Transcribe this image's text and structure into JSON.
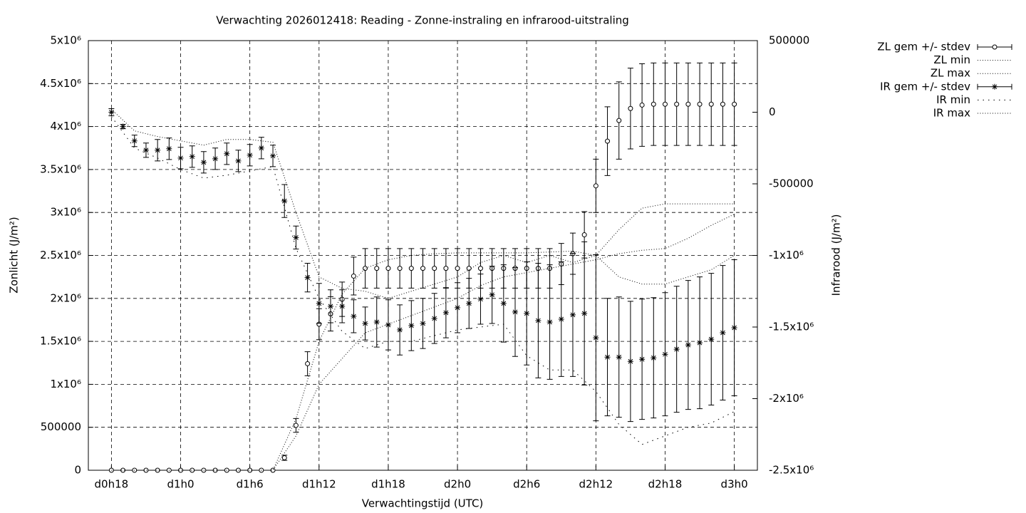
{
  "chart_data": {
    "type": "errorbar",
    "title": "Verwachting 2026012418: Reading - Zonne-instraling en infrarood-uitstraling",
    "xlabel": "Verwachtingstijd (UTC)",
    "ylabel": "Zonlicht (J/m²)",
    "y2label": "Infrarood (J/m²)",
    "grid": true,
    "legend": "outside-top-right",
    "xlim": [
      16,
      74
    ],
    "xticks": [
      {
        "value": 18,
        "label": "d0h18"
      },
      {
        "value": 24,
        "label": "d1h0"
      },
      {
        "value": 30,
        "label": "d1h6"
      },
      {
        "value": 36,
        "label": "d1h12"
      },
      {
        "value": 42,
        "label": "d1h18"
      },
      {
        "value": 48,
        "label": "d2h0"
      },
      {
        "value": 54,
        "label": "d2h6"
      },
      {
        "value": 60,
        "label": "d2h12"
      },
      {
        "value": 66,
        "label": "d2h18"
      },
      {
        "value": 72,
        "label": "d3h0"
      }
    ],
    "ylim": [
      0,
      5000000
    ],
    "yticks": [
      0,
      500000,
      {
        "value": 1000000,
        "label": "1x10⁶"
      },
      {
        "value": 1500000,
        "label": "1.5x10⁶"
      },
      {
        "value": 2000000,
        "label": "2x10⁶"
      },
      {
        "value": 2500000,
        "label": "2.5x10⁶"
      },
      {
        "value": 3000000,
        "label": "3x10⁶"
      },
      {
        "value": 3500000,
        "label": "3.5x10⁶"
      },
      {
        "value": 4000000,
        "label": "4x10⁶"
      },
      {
        "value": 4500000,
        "label": "4.5x10⁶"
      },
      {
        "value": 5000000,
        "label": "5x10⁶"
      }
    ],
    "y2lim": [
      -2500000,
      500000
    ],
    "y2ticks": [
      {
        "value": -2500000,
        "label": "-2.5x10⁶"
      },
      {
        "value": -2000000,
        "label": "-2x10⁶"
      },
      {
        "value": -1500000,
        "label": "-1.5x10⁶"
      },
      {
        "value": -1000000,
        "label": "-1x10⁶"
      },
      -500000,
      0,
      500000
    ],
    "x": [
      18,
      19,
      20,
      21,
      22,
      23,
      24,
      25,
      26,
      27,
      28,
      29,
      30,
      31,
      32,
      33,
      34,
      35,
      36,
      37,
      38,
      39,
      40,
      41,
      42,
      43,
      44,
      45,
      46,
      47,
      48,
      49,
      50,
      51,
      52,
      53,
      54,
      55,
      56,
      57,
      58,
      59,
      60,
      61,
      62,
      63,
      64,
      65,
      66,
      67,
      68,
      69,
      70,
      71,
      72
    ],
    "series": [
      {
        "name": "ZL gem +/- stdev",
        "color": "#000000",
        "style": "errorbar",
        "marker": "circle",
        "values": [
          0,
          0,
          0,
          0,
          0,
          0,
          0,
          0,
          0,
          0,
          0,
          0,
          0,
          0,
          0,
          145000,
          522000,
          1240000,
          1700000,
          1820000,
          1990000,
          2260000,
          2350000,
          2350000,
          2350000,
          2350000,
          2350000,
          2350000,
          2350000,
          2350000,
          2350000,
          2350000,
          2350000,
          2350000,
          2350000,
          2350000,
          2350000,
          2350000,
          2350000,
          2400000,
          2520000,
          2740000,
          3310000,
          3830000,
          4070000,
          4210000,
          4250000,
          4260000,
          4260000,
          4260000,
          4260000,
          4260000,
          4260000,
          4260000,
          4260000
        ],
        "errors": [
          0,
          0,
          0,
          0,
          0,
          0,
          0,
          0,
          0,
          0,
          0,
          0,
          0,
          0,
          0,
          30000,
          80000,
          140000,
          180000,
          200000,
          200000,
          220000,
          230000,
          230000,
          230000,
          230000,
          230000,
          230000,
          230000,
          230000,
          230000,
          230000,
          230000,
          230000,
          230000,
          230000,
          230000,
          230000,
          230000,
          240000,
          240000,
          270000,
          310000,
          400000,
          450000,
          470000,
          480000,
          480000,
          480000,
          480000,
          480000,
          480000,
          480000,
          480000,
          480000
        ]
      },
      {
        "name": "ZL min",
        "color": "#000000",
        "style": "fine-dotted",
        "x": [
          18,
          20,
          22,
          24,
          26,
          28,
          30,
          32,
          34,
          36,
          38,
          40,
          42,
          44,
          46,
          48,
          50,
          52,
          54,
          56,
          58,
          60,
          62,
          64,
          66,
          68,
          70,
          72
        ],
        "values": [
          0,
          0,
          0,
          0,
          0,
          0,
          0,
          0,
          400000,
          1000000,
          1300000,
          1600000,
          1700000,
          1800000,
          1900000,
          2000000,
          2150000,
          2250000,
          2300000,
          2350000,
          2400000,
          2450000,
          2520000,
          2560000,
          2580000,
          2700000,
          2850000,
          2980000
        ]
      },
      {
        "name": "ZL max",
        "color": "#000000",
        "style": "fine-dotted",
        "x": [
          18,
          20,
          22,
          24,
          26,
          28,
          30,
          32,
          34,
          36,
          38,
          40,
          42,
          44,
          46,
          48,
          50,
          52,
          54,
          56,
          58,
          60,
          62,
          64,
          66,
          68,
          70,
          72
        ],
        "values": [
          0,
          0,
          0,
          0,
          0,
          0,
          0,
          0,
          600000,
          1500000,
          2050000,
          2350000,
          2450000,
          2500000,
          2520000,
          2530000,
          2530000,
          2530000,
          2530000,
          2540000,
          2550000,
          2500000,
          2800000,
          3050000,
          3100000,
          3100000,
          3100000,
          3100000
        ]
      },
      {
        "name": "IR gem +/- stdev",
        "color": "#000000",
        "style": "errorbar",
        "marker": "star",
        "axis": "y2",
        "values": [
          0,
          -100000,
          -200000,
          -265000,
          -265000,
          -255000,
          -320000,
          -310000,
          -350000,
          -325000,
          -290000,
          -340000,
          -300000,
          -250000,
          -305000,
          -620000,
          -875000,
          -1155000,
          -1335000,
          -1355000,
          -1355000,
          -1425000,
          -1475000,
          -1465000,
          -1485000,
          -1520000,
          -1490000,
          -1475000,
          -1440000,
          -1400000,
          -1365000,
          -1335000,
          -1305000,
          -1275000,
          -1335000,
          -1395000,
          -1405000,
          -1455000,
          -1465000,
          -1445000,
          -1415000,
          -1405000,
          -1575000,
          -1710000,
          -1710000,
          -1740000,
          -1725000,
          -1715000,
          -1690000,
          -1655000,
          -1625000,
          -1610000,
          -1585000,
          -1540000,
          -1505000
        ],
        "errors": [
          25000,
          15000,
          40000,
          50000,
          75000,
          75000,
          75000,
          75000,
          75000,
          75000,
          75000,
          75000,
          75000,
          75000,
          75000,
          115000,
          80000,
          100000,
          140000,
          115000,
          115000,
          115000,
          115000,
          175000,
          175000,
          175000,
          175000,
          175000,
          175000,
          175000,
          175000,
          175000,
          175000,
          200000,
          270000,
          310000,
          360000,
          400000,
          400000,
          400000,
          430000,
          500000,
          580000,
          410000,
          420000,
          420000,
          420000,
          420000,
          430000,
          440000,
          450000,
          460000,
          460000,
          470000,
          475000
        ]
      },
      {
        "name": "IR min",
        "color": "#000000",
        "style": "sparse-dotted",
        "axis": "y2",
        "x": [
          18,
          20,
          22,
          24,
          26,
          28,
          30,
          32,
          34,
          36,
          38,
          40,
          42,
          44,
          46,
          48,
          50,
          52,
          54,
          56,
          58,
          60,
          62,
          64,
          66,
          68,
          70,
          72
        ],
        "values": [
          -30000,
          -250000,
          -320000,
          -400000,
          -460000,
          -440000,
          -410000,
          -380000,
          -950000,
          -1300000,
          -1530000,
          -1650000,
          -1600000,
          -1600000,
          -1560000,
          -1520000,
          -1500000,
          -1480000,
          -1700000,
          -1800000,
          -1800000,
          -1950000,
          -2180000,
          -2320000,
          -2260000,
          -2200000,
          -2170000,
          -2090000
        ]
      },
      {
        "name": "IR max",
        "color": "#000000",
        "style": "fine-dotted",
        "axis": "y2",
        "x": [
          18,
          20,
          22,
          24,
          26,
          28,
          30,
          32,
          34,
          36,
          38,
          40,
          42,
          44,
          46,
          48,
          50,
          52,
          54,
          56,
          58,
          60,
          62,
          64,
          66,
          68,
          70,
          72
        ],
        "values": [
          20000,
          -130000,
          -170000,
          -200000,
          -230000,
          -190000,
          -190000,
          -210000,
          -700000,
          -1150000,
          -1230000,
          -1250000,
          -1300000,
          -1250000,
          -1200000,
          -1150000,
          -1050000,
          -1000000,
          -1050000,
          -1000000,
          -1050000,
          -1000000,
          -1150000,
          -1200000,
          -1200000,
          -1150000,
          -1100000,
          -1000000
        ]
      }
    ]
  }
}
